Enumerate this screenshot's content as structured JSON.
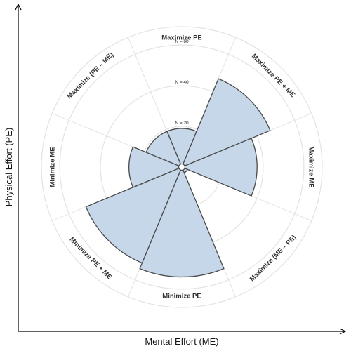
{
  "chart_data": {
    "type": "polar-area",
    "xlabel": "Mental Effort (ME)",
    "ylabel": "Physical Effort (PE)",
    "categories": [
      "Maximize PE",
      "Maximize PE + ME",
      "Maximize ME",
      "Maximize (ME – PE)",
      "Minimize PE",
      "Minimize PE + ME",
      "Minimize ME",
      "Maximize (PE – ME)"
    ],
    "values": [
      19,
      47,
      37,
      3,
      54,
      51,
      26,
      19
    ],
    "rings": [
      {
        "value": 20,
        "label": "N = 20"
      },
      {
        "value": 40,
        "label": "N = 40"
      },
      {
        "value": 60,
        "label": "N = 60"
      }
    ],
    "rmax": 69,
    "grid": true,
    "fill_color": "#c5d7e9",
    "stroke_color": "#4a4a4a",
    "grid_color": "#e3e3e3"
  }
}
